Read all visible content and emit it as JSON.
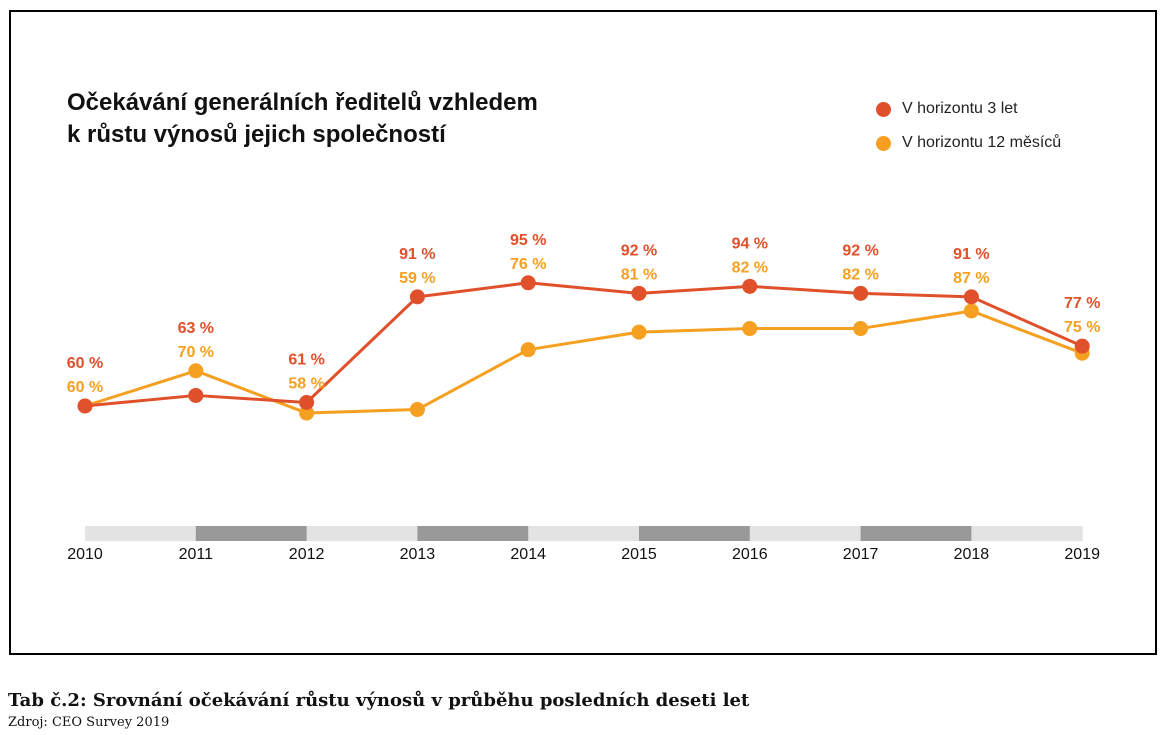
{
  "chart_data": {
    "type": "line",
    "title": [
      "Očekávání generálních ředitelů vzhledem",
      "k růstu výnosů jejich společností"
    ],
    "categories": [
      "2010",
      "2011",
      "2012",
      "2013",
      "2014",
      "2015",
      "2016",
      "2017",
      "2018",
      "2019"
    ],
    "series": [
      {
        "name": "V horizontu 3 let",
        "color": "#e0502b",
        "values": [
          60,
          63,
          61,
          91,
          95,
          92,
          94,
          92,
          91,
          77
        ],
        "labels": [
          "60 %",
          "63 %",
          "61 %",
          "91 %",
          "95 %",
          "92 %",
          "94 %",
          "92 %",
          "91 %",
          "77 %"
        ]
      },
      {
        "name": "V horizontu 12 měsíců",
        "color": "#f5a021",
        "values": [
          60,
          70,
          58,
          59,
          76,
          81,
          82,
          82,
          87,
          75
        ],
        "labels": [
          "60 %",
          "70 %",
          "58 %",
          "59 %",
          "76 %",
          "81 %",
          "82 %",
          "82 %",
          "87 %",
          "75 %"
        ]
      }
    ],
    "legend_position": "top-right",
    "grid": false,
    "axis_band_colors": {
      "light": "#e3e3e3",
      "dark": "#999999"
    }
  },
  "caption": {
    "title": "Tab č.2: Srovnání očekávání růstu výnosů v průběhu posledních deseti let",
    "source": "Zdroj: CEO Survey 2019"
  }
}
